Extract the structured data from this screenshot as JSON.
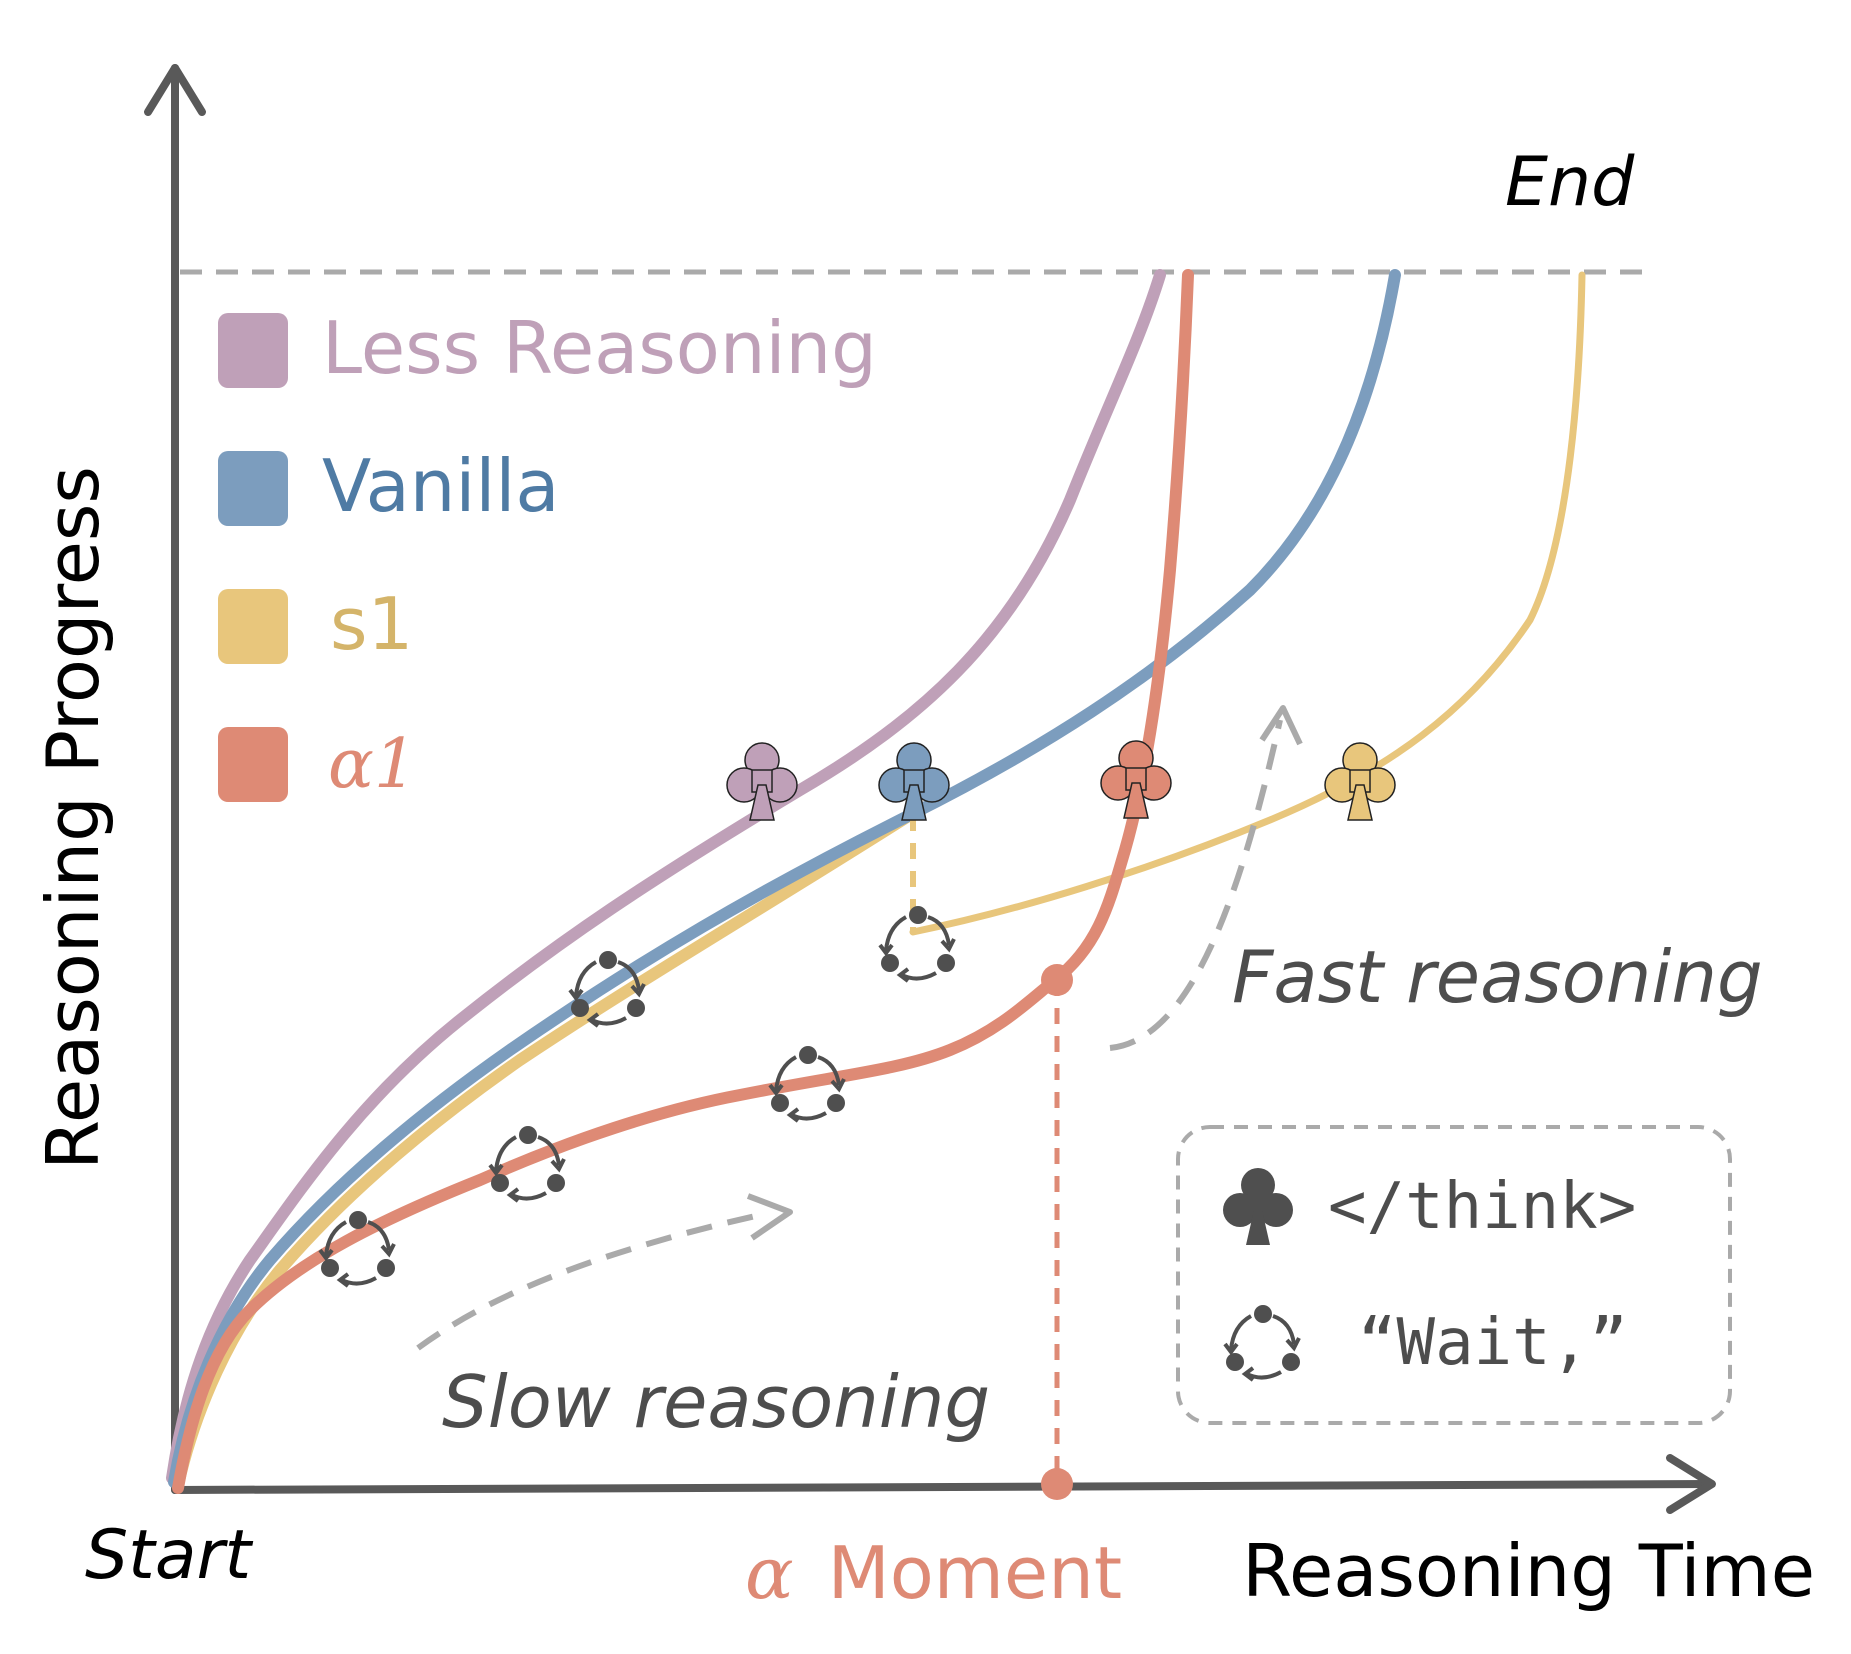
{
  "colors": {
    "axis": "#595959",
    "less_reasoning": "#BFA0B8",
    "vanilla": "#7C9DBE",
    "s1": "#E8C67C",
    "alpha1": "#DE8A75",
    "guide_gray": "#AAAAAA",
    "text_dark": "#000000",
    "text_gray": "#4D4D4D",
    "marker_dark": "#4F4F4F"
  },
  "labels": {
    "end": "End",
    "start": "Start",
    "y_axis": "Reasoning Progress",
    "x_axis": "Reasoning Time",
    "alpha_symbol": "α",
    "alpha_moment": "Moment",
    "fast_reasoning": "Fast reasoning",
    "slow_reasoning": "Slow reasoning"
  },
  "legend": {
    "items": [
      {
        "label": "Less Reasoning",
        "color_key": "less_reasoning"
      },
      {
        "label": "Vanilla",
        "color_key": "vanilla"
      },
      {
        "label": "s1",
        "color_key": "s1"
      },
      {
        "label": "α1",
        "color_key": "alpha1"
      }
    ]
  },
  "key_box": {
    "think_icon": "club-icon",
    "think_label": "</think>",
    "wait_icon": "cycle-icon",
    "wait_label": "“Wait,”"
  }
}
